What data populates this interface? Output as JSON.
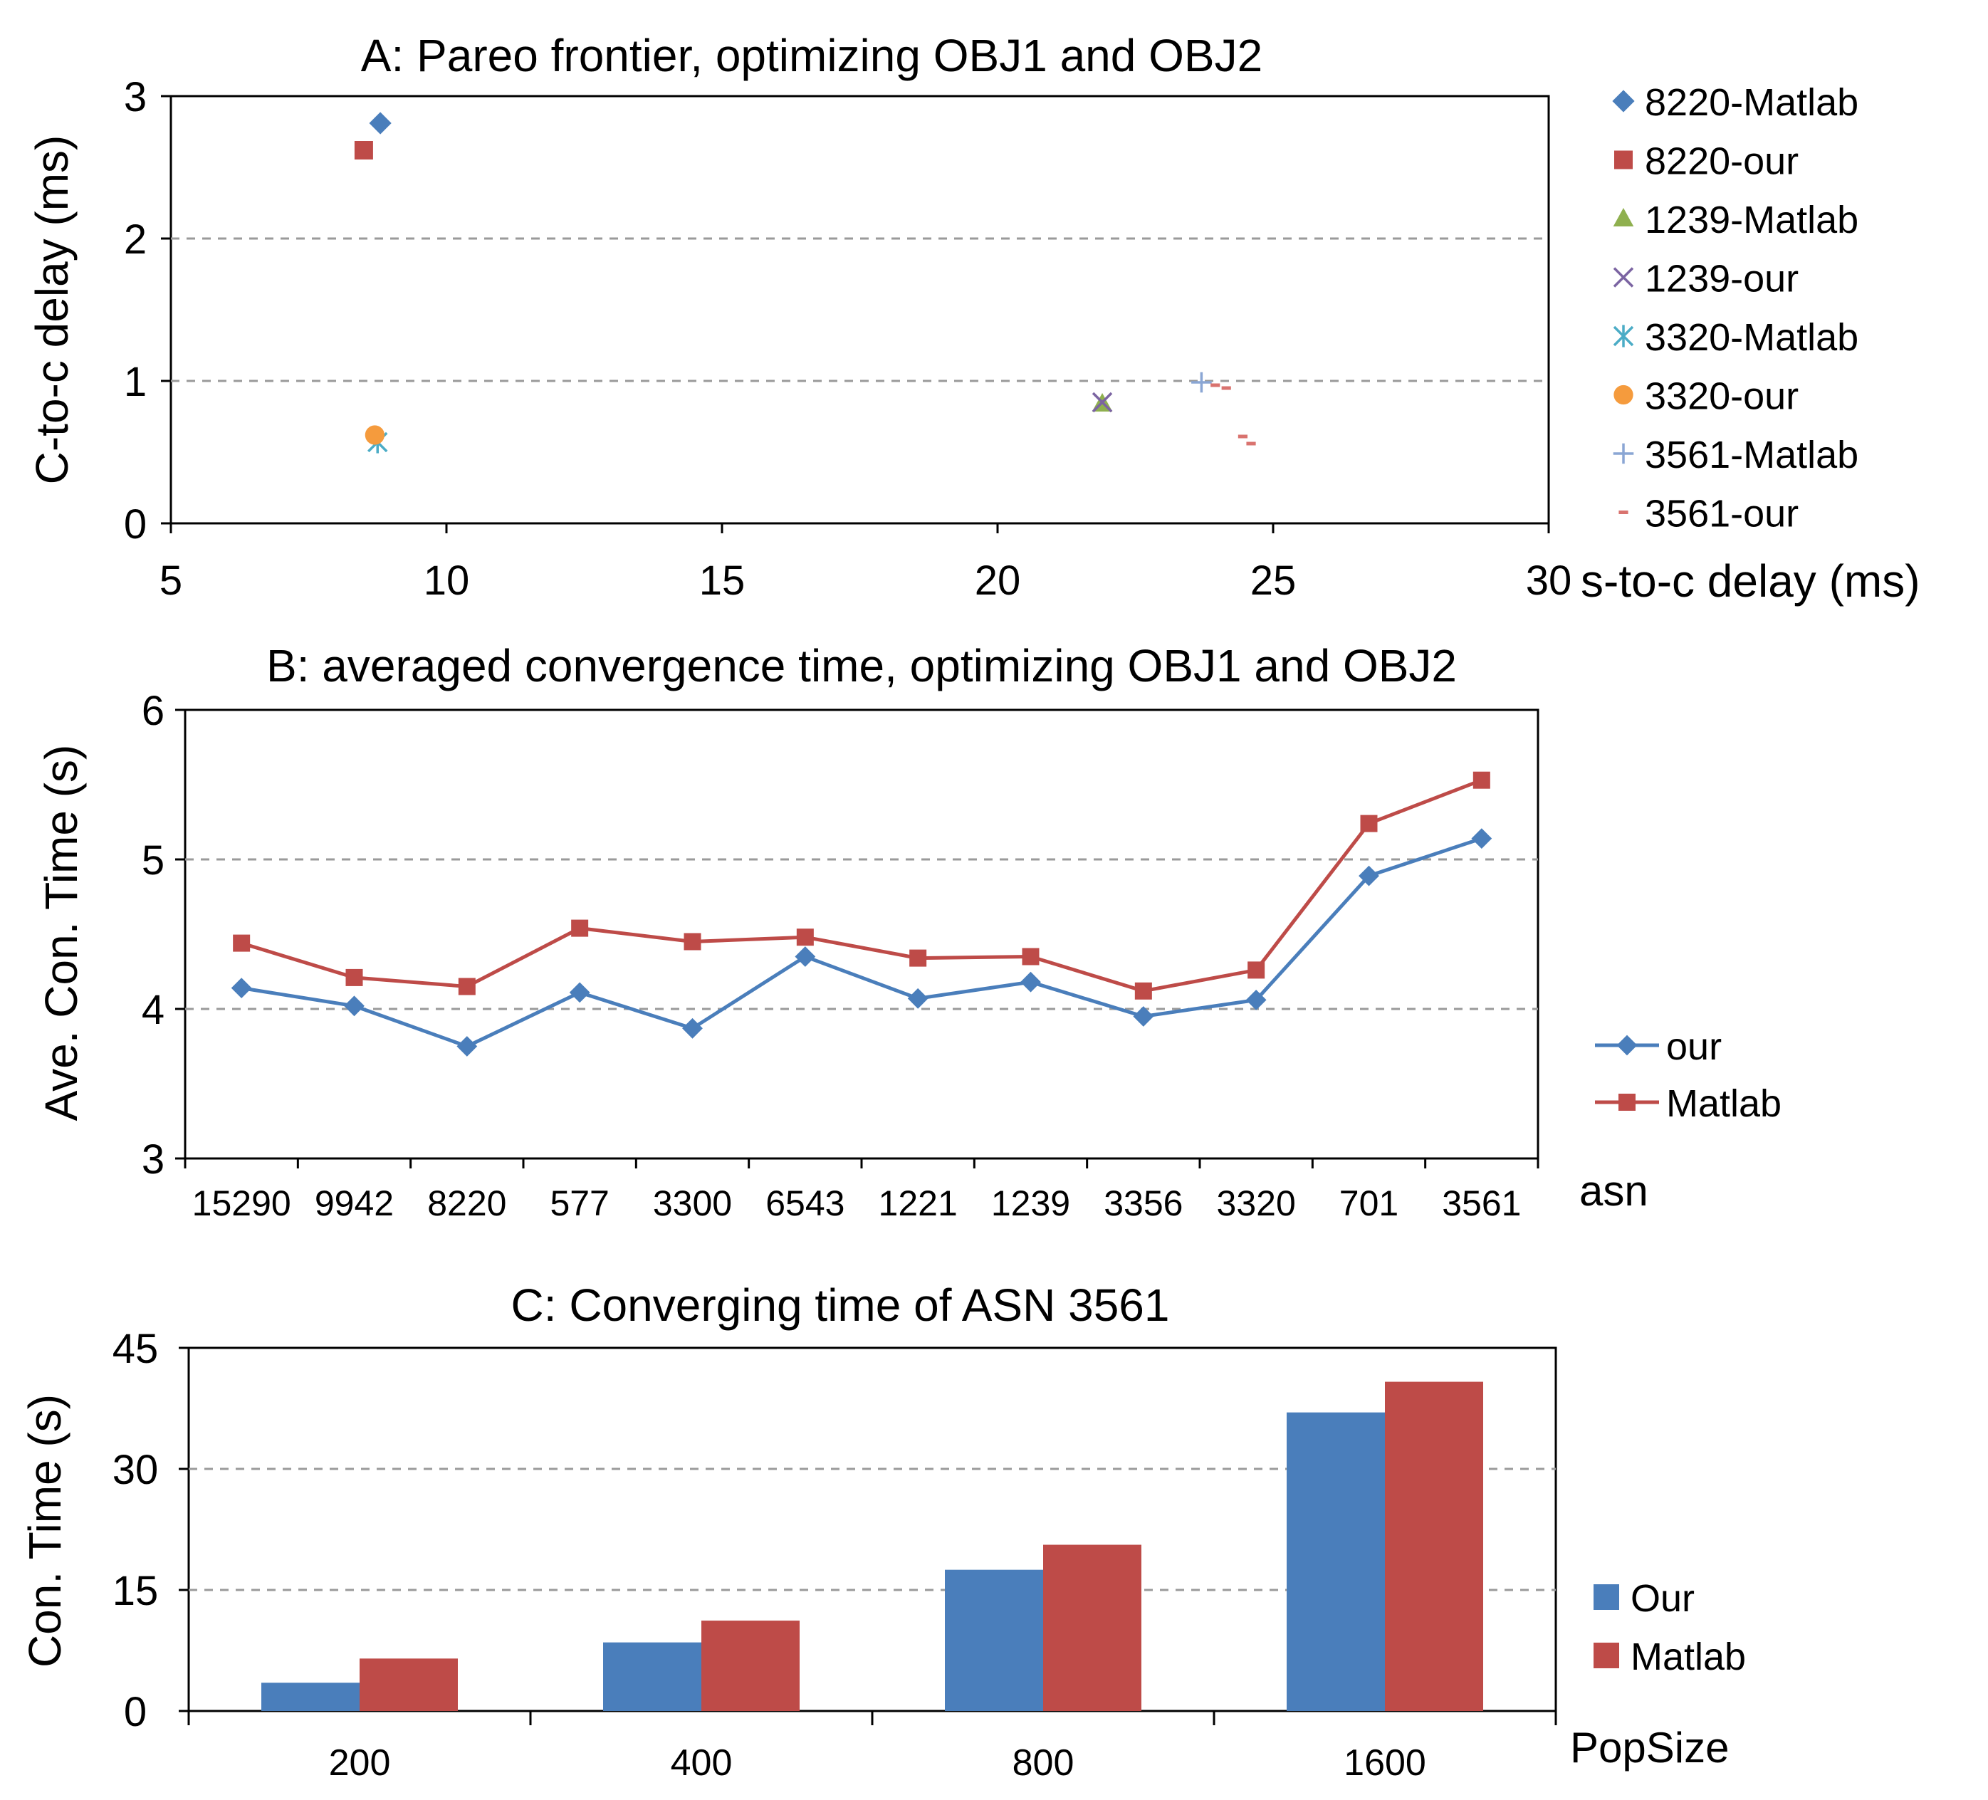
{
  "colors": {
    "blue": "#4a7ebb",
    "red": "#be4b48",
    "green": "#8fb04f",
    "purple": "#7b64a2",
    "teal": "#4bacc6",
    "orange": "#f59b3d",
    "lightblue": "#8aa6d4",
    "salmon": "#d9736f",
    "grid": "#9a9a9a"
  },
  "chart_data": [
    {
      "type": "scatter",
      "title": "A: Pareo frontier, optimizing OBJ1 and OBJ2",
      "xlabel": "s-to-c delay (ms)",
      "ylabel": "C-to-c delay (ms)",
      "xlim": [
        5,
        30
      ],
      "ylim": [
        0,
        3
      ],
      "x_ticks": [
        "5",
        "10",
        "15",
        "20",
        "25",
        "30"
      ],
      "y_ticks": [
        "0",
        "1",
        "2",
        "3"
      ],
      "legend_position": "right",
      "series": [
        {
          "name": "8220-Matlab",
          "marker": "diamond",
          "color": "#4a7ebb",
          "points": [
            [
              8.8,
              2.81
            ]
          ]
        },
        {
          "name": "8220-our",
          "marker": "square",
          "color": "#be4b48",
          "points": [
            [
              8.5,
              2.62
            ]
          ]
        },
        {
          "name": "1239-Matlab",
          "marker": "triangle",
          "color": "#8fb04f",
          "points": [
            [
              21.9,
              0.84
            ]
          ]
        },
        {
          "name": "1239-our",
          "marker": "x",
          "color": "#7b64a2",
          "points": [
            [
              21.9,
              0.85
            ]
          ]
        },
        {
          "name": "3320-Matlab",
          "marker": "asterisk",
          "color": "#4bacc6",
          "points": [
            [
              8.75,
              0.57
            ]
          ]
        },
        {
          "name": "3320-our",
          "marker": "circle",
          "color": "#f59b3d",
          "points": [
            [
              8.7,
              0.62
            ]
          ]
        },
        {
          "name": "3561-Matlab",
          "marker": "plus",
          "color": "#8aa6d4",
          "points": [
            [
              23.7,
              0.99
            ]
          ]
        },
        {
          "name": "3561-our",
          "marker": "dash",
          "color": "#d9736f",
          "points": [
            [
              23.95,
              0.97
            ],
            [
              24.15,
              0.95
            ],
            [
              24.45,
              0.61
            ],
            [
              24.6,
              0.56
            ]
          ]
        }
      ]
    },
    {
      "type": "line",
      "title": "B: averaged convergence time, optimizing OBJ1 and OBJ2",
      "xlabel": "asn",
      "ylabel": "Ave. Con. Time (s)",
      "ylim": [
        3,
        6
      ],
      "y_ticks": [
        "3",
        "4",
        "5",
        "6"
      ],
      "categories": [
        "15290",
        "9942",
        "8220",
        "577",
        "3300",
        "6543",
        "1221",
        "1239",
        "3356",
        "3320",
        "701",
        "3561"
      ],
      "legend_position": "right",
      "series": [
        {
          "name": "our",
          "marker": "diamond",
          "color": "#4a7ebb",
          "values": [
            4.14,
            4.02,
            3.75,
            4.11,
            3.87,
            4.35,
            4.07,
            4.18,
            3.95,
            4.06,
            4.89,
            5.14
          ]
        },
        {
          "name": "Matlab",
          "marker": "square",
          "color": "#be4b48",
          "values": [
            4.44,
            4.21,
            4.15,
            4.54,
            4.45,
            4.48,
            4.34,
            4.35,
            4.12,
            4.26,
            5.24,
            5.53
          ]
        }
      ]
    },
    {
      "type": "bar",
      "title": "C: Converging time of ASN 3561",
      "xlabel": "PopSize",
      "ylabel": "Con. Time (s)",
      "ylim": [
        0,
        45
      ],
      "y_ticks": [
        "0",
        "15",
        "30",
        "45"
      ],
      "categories": [
        "200",
        "400",
        "800",
        "1600"
      ],
      "legend_position": "right",
      "series": [
        {
          "name": "Our",
          "color": "#4a7ebb",
          "values": [
            3.5,
            8.5,
            17.5,
            37
          ]
        },
        {
          "name": "Matlab",
          "color": "#be4b48",
          "values": [
            6.5,
            11.2,
            20.6,
            40.8
          ]
        }
      ]
    }
  ]
}
